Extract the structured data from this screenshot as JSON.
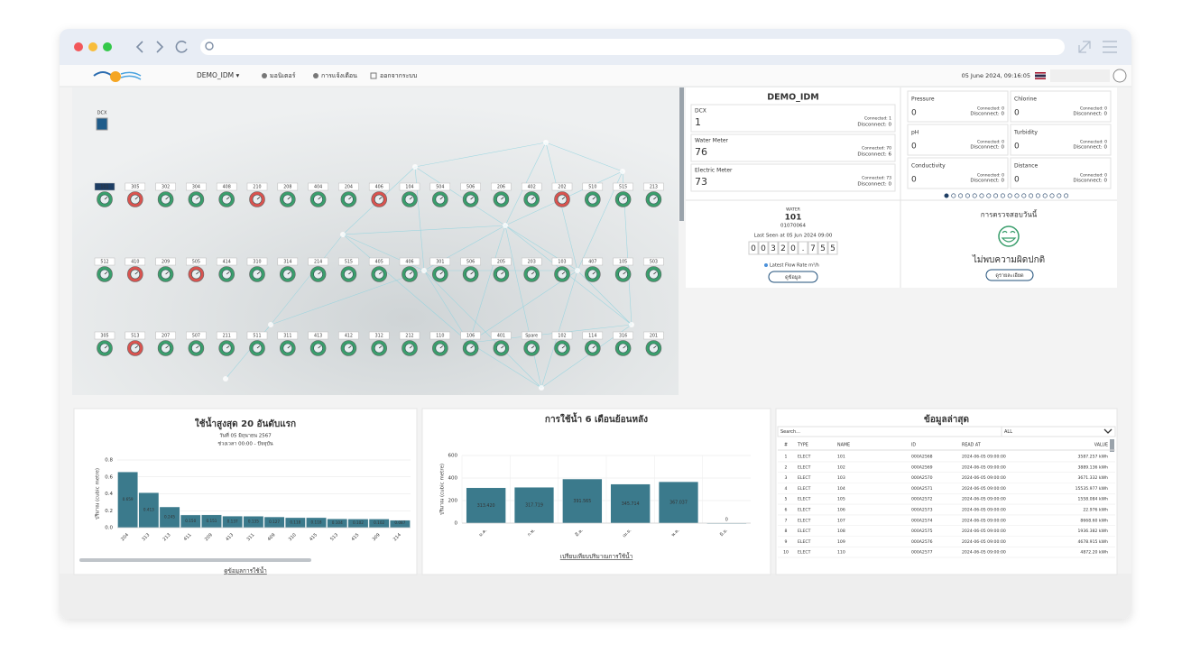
{
  "nav": {
    "project": "DEMO_IDM ▾",
    "items": [
      "มอนิเตอร์",
      "การแจ้งเตือน",
      "ออกจากระบบ"
    ],
    "datetime": "05 June 2024, 09:16:05"
  },
  "map": {
    "dcx_label": "DCX",
    "rows": [
      [
        {
          "label": "101",
          "color": "#3a9e6c"
        },
        {
          "label": "305",
          "color": "#d9534f"
        },
        {
          "label": "302",
          "color": "#3a9e6c"
        },
        {
          "label": "304",
          "color": "#3a9e6c"
        },
        {
          "label": "408",
          "color": "#3a9e6c"
        },
        {
          "label": "210",
          "color": "#d9534f"
        },
        {
          "label": "208",
          "color": "#3a9e6c"
        },
        {
          "label": "404",
          "color": "#3a9e6c"
        },
        {
          "label": "204",
          "color": "#3a9e6c"
        },
        {
          "label": "406",
          "color": "#d9534f"
        },
        {
          "label": "104",
          "color": "#3a9e6c"
        },
        {
          "label": "504",
          "color": "#3a9e6c"
        },
        {
          "label": "506",
          "color": "#3a9e6c"
        },
        {
          "label": "206",
          "color": "#3a9e6c"
        },
        {
          "label": "402",
          "color": "#3a9e6c"
        },
        {
          "label": "202",
          "color": "#d9534f"
        },
        {
          "label": "510",
          "color": "#3a9e6c"
        },
        {
          "label": "515",
          "color": "#3a9e6c"
        },
        {
          "label": "213",
          "color": "#3a9e6c"
        }
      ],
      [
        {
          "label": "512",
          "color": "#3a9e6c"
        },
        {
          "label": "410",
          "color": "#d9534f"
        },
        {
          "label": "209",
          "color": "#3a9e6c"
        },
        {
          "label": "505",
          "color": "#d9534f"
        },
        {
          "label": "414",
          "color": "#3a9e6c"
        },
        {
          "label": "310",
          "color": "#3a9e6c"
        },
        {
          "label": "314",
          "color": "#3a9e6c"
        },
        {
          "label": "214",
          "color": "#3a9e6c"
        },
        {
          "label": "515",
          "color": "#3a9e6c"
        },
        {
          "label": "405",
          "color": "#3a9e6c"
        },
        {
          "label": "406",
          "color": "#3a9e6c"
        },
        {
          "label": "301",
          "color": "#3a9e6c"
        },
        {
          "label": "506",
          "color": "#3a9e6c"
        },
        {
          "label": "205",
          "color": "#3a9e6c"
        },
        {
          "label": "203",
          "color": "#3a9e6c"
        },
        {
          "label": "103",
          "color": "#3a9e6c"
        },
        {
          "label": "407",
          "color": "#3a9e6c"
        },
        {
          "label": "105",
          "color": "#3a9e6c"
        },
        {
          "label": "503",
          "color": "#3a9e6c"
        }
      ],
      [
        {
          "label": "305",
          "color": "#3a9e6c"
        },
        {
          "label": "513",
          "color": "#d9534f"
        },
        {
          "label": "207",
          "color": "#3a9e6c"
        },
        {
          "label": "507",
          "color": "#3a9e6c"
        },
        {
          "label": "211",
          "color": "#3a9e6c"
        },
        {
          "label": "511",
          "color": "#3a9e6c"
        },
        {
          "label": "311",
          "color": "#3a9e6c"
        },
        {
          "label": "413",
          "color": "#3a9e6c"
        },
        {
          "label": "412",
          "color": "#3a9e6c"
        },
        {
          "label": "312",
          "color": "#3a9e6c"
        },
        {
          "label": "212",
          "color": "#3a9e6c"
        },
        {
          "label": "110",
          "color": "#3a9e6c"
        },
        {
          "label": "106",
          "color": "#3a9e6c"
        },
        {
          "label": "401",
          "color": "#3a9e6c"
        },
        {
          "label": "Spare",
          "color": "#3a9e6c"
        },
        {
          "label": "102",
          "color": "#3a9e6c"
        },
        {
          "label": "114",
          "color": "#3a9e6c"
        },
        {
          "label": "316",
          "color": "#3a9e6c"
        },
        {
          "label": "201",
          "color": "#3a9e6c"
        }
      ]
    ]
  },
  "summary": {
    "title": "DEMO_IDM",
    "devices": [
      {
        "name": "DCX",
        "count": "1",
        "connected": "Connected: 1",
        "disconnected": "Disconnect: 0"
      },
      {
        "name": "Water Meter",
        "count": "76",
        "connected": "Connected: 70",
        "disconnected": "Disconnect: 6"
      },
      {
        "name": "Electric Meter",
        "count": "73",
        "connected": "Connected: 73",
        "disconnected": "Disconnect: 0"
      }
    ]
  },
  "sensors": [
    {
      "name": "Pressure",
      "value": "0",
      "connected": "Connected: 0",
      "disconnected": "Disconnect: 0"
    },
    {
      "name": "Chlorine",
      "value": "0",
      "connected": "Connected: 0",
      "disconnected": "Disconnect: 0"
    },
    {
      "name": "pH",
      "value": "0",
      "connected": "Connected: 0",
      "disconnected": "Disconnect: 0"
    },
    {
      "name": "Turbidity",
      "value": "0",
      "connected": "Connected: 0",
      "disconnected": "Disconnect: 0"
    },
    {
      "name": "Conductivity",
      "value": "0",
      "connected": "Connected: 0",
      "disconnected": "Disconnect: 0"
    },
    {
      "name": "Distance",
      "value": "0",
      "connected": "Connected: 0",
      "disconnected": "Disconnect: 0"
    }
  ],
  "meter": {
    "type_label": "WATER",
    "name": "101",
    "serial": "01070064",
    "last_seen": "Last Seen at 05 Jun 2024 09:00",
    "reading": [
      "0",
      "0",
      "3",
      "2",
      "0",
      ".",
      "7",
      "5",
      "5"
    ],
    "flow_label": "Latest Flow Rate m³/h",
    "button": "ดูข้อมูล"
  },
  "check": {
    "title": "การตรวจสอบวันนี้",
    "message": "ไม่พบความผิดปกติ",
    "button": "ดูรายละเอียด"
  },
  "chart_data": [
    {
      "type": "bar",
      "title": "ใช้น้ำสูงสุด 20 อันดับแรก",
      "subtitles": [
        "วันที่ 05 มิถุนายน 2567",
        "ช่วงเวลา 00:00 - ปัจจุบัน"
      ],
      "y_label": "ปริมาณ (cubic metre)",
      "categories": [
        "204",
        "313",
        "213",
        "411",
        "209",
        "413",
        "311",
        "409",
        "310",
        "415",
        "513",
        "415",
        "309",
        "214"
      ],
      "values": [
        0.659,
        0.413,
        0.245,
        0.15,
        0.151,
        0.137,
        0.135,
        0.127,
        0.118,
        0.118,
        0.104,
        0.102,
        0.102,
        0.087
      ],
      "value_labels": [
        "0.659",
        "0.413",
        "0.245",
        "0.150",
        "0.151",
        "0.137",
        "0.135",
        "0.127",
        "0.118",
        "0.118",
        "0.104",
        "0.102",
        "0.102",
        "0.087"
      ],
      "color": "#3b7a8c",
      "ylim": [
        0,
        0.8
      ],
      "yticks": [
        {
          "value": 0,
          "label": "0.0"
        },
        0.2,
        0.4,
        0.6,
        0.8
      ],
      "grid": true,
      "link": "ดูข้อมูลการใช้น้ำ"
    },
    {
      "type": "bar",
      "title": "การใช้น้ำ 6 เดือนย้อนหลัง",
      "y_label": "ปริมาณ (cubic metre)",
      "categories": [
        "ม.ค.",
        "ก.พ.",
        "มี.ค.",
        "เม.ย.",
        "พ.ค.",
        "มิ.ย."
      ],
      "values": [
        313.42,
        317.719,
        391.565,
        345.714,
        367.037,
        0
      ],
      "value_labels": [
        "313.420",
        "317.719",
        "391.565",
        "345.714",
        "367.037",
        "0"
      ],
      "color": "#3b7a8c",
      "ylim": [
        0,
        600
      ],
      "yticks": [
        0,
        200,
        400,
        600
      ],
      "grid": true,
      "link": "เปรียบเทียบปริมาณการใช้น้ำ"
    }
  ],
  "latest": {
    "title": "ข้อมูลล่าสุด",
    "search": "Search...",
    "filter": "ALL",
    "columns": [
      "#",
      "TYPE",
      "NAME",
      "ID",
      "READ AT",
      "VALUE"
    ],
    "rows": [
      [
        "1",
        "ELECT",
        "101",
        "000A2568",
        "2024-06-05 09:00:00",
        "3587.257 kWh"
      ],
      [
        "2",
        "ELECT",
        "102",
        "000A2569",
        "2024-06-05 09:00:00",
        "3889.136 kWh"
      ],
      [
        "3",
        "ELECT",
        "103",
        "000A2570",
        "2024-06-05 09:00:00",
        "3671.332 kWh"
      ],
      [
        "4",
        "ELECT",
        "104",
        "000A2571",
        "2024-06-05 09:00:00",
        "15535.977 kWh"
      ],
      [
        "5",
        "ELECT",
        "105",
        "000A2572",
        "2024-06-05 09:00:00",
        "1558.084 kWh"
      ],
      [
        "6",
        "ELECT",
        "106",
        "000A2573",
        "2024-06-05 09:00:00",
        "22.976 kWh"
      ],
      [
        "7",
        "ELECT",
        "107",
        "000A2574",
        "2024-06-05 09:00:00",
        "8668.60 kWh"
      ],
      [
        "8",
        "ELECT",
        "108",
        "000A2575",
        "2024-06-05 09:00:00",
        "1936.382 kWh"
      ],
      [
        "9",
        "ELECT",
        "109",
        "000A2576",
        "2024-06-05 09:00:00",
        "4678.915 kWh"
      ],
      [
        "10",
        "ELECT",
        "110",
        "000A2577",
        "2024-06-05 09:00:00",
        "4872.20 kWh"
      ]
    ]
  }
}
